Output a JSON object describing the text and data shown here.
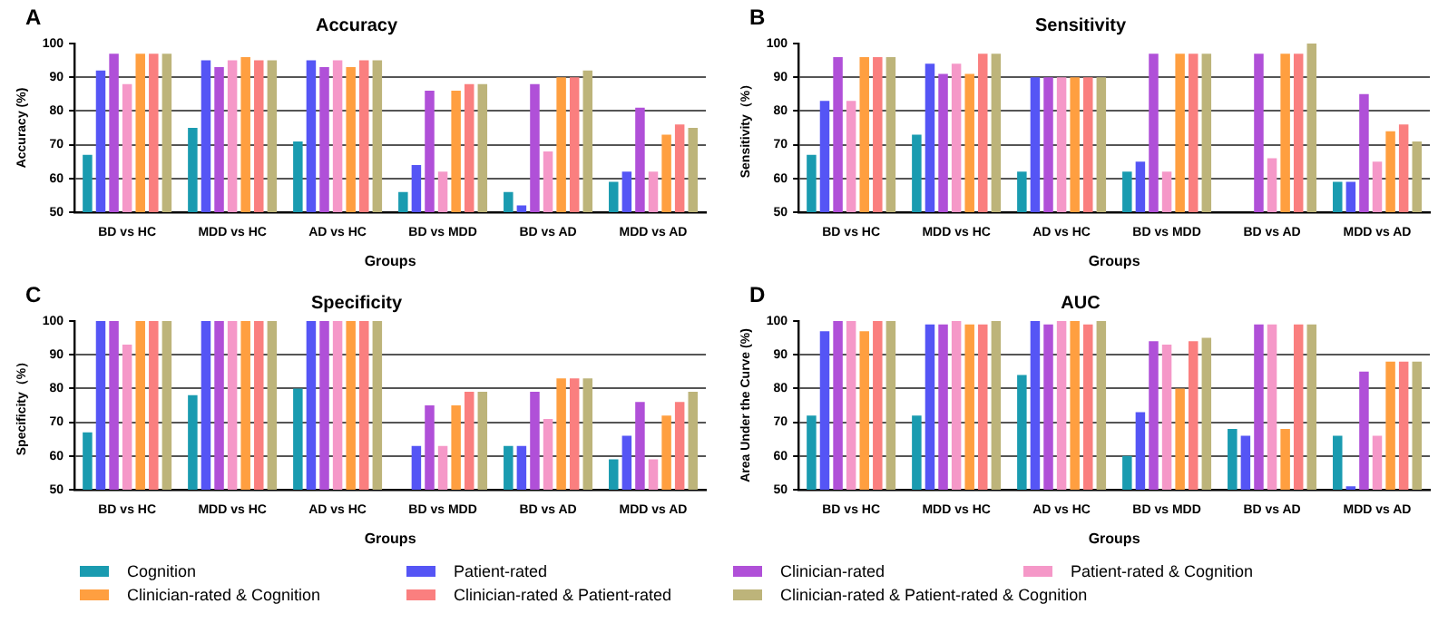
{
  "chart_data": [
    {
      "type": "bar",
      "title": "Accuracy",
      "annotations": [
        "A"
      ],
      "xlabel": "Groups",
      "ylabel": "Accuracy (%)",
      "categories": [
        "BD vs HC",
        "MDD vs HC",
        "AD vs HC",
        "BD vs MDD",
        "BD vs AD",
        "MDD vs AD"
      ],
      "ylim": [
        50,
        100
      ],
      "yticks": [
        50,
        60,
        70,
        80,
        90,
        100
      ],
      "grid": "y",
      "legend": "bottom",
      "series": [
        {
          "name": "Cognition",
          "color": "#1a9bb0",
          "values": [
            67,
            75,
            71,
            56,
            56,
            59
          ]
        },
        {
          "name": "Patient-rated",
          "color": "#5555f5",
          "values": [
            92,
            95,
            95,
            64,
            52,
            62
          ]
        },
        {
          "name": "Clinician-rated",
          "color": "#b050d8",
          "values": [
            97,
            93,
            93,
            86,
            88,
            81
          ]
        },
        {
          "name": "Patient-rated & Cognition",
          "color": "#f598c8",
          "values": [
            88,
            95,
            95,
            62,
            68,
            62
          ]
        },
        {
          "name": "Clinician-rated & Cognition",
          "color": "#ff9f40",
          "values": [
            97,
            96,
            93,
            86,
            90,
            73
          ]
        },
        {
          "name": "Clinician-rated & Patient-rated",
          "color": "#fa7f7f",
          "values": [
            97,
            95,
            95,
            88,
            90,
            76
          ]
        },
        {
          "name": "Clinician-rated & Patient-rated & Cognition",
          "color": "#bdb47a",
          "values": [
            97,
            95,
            95,
            88,
            92,
            75
          ]
        }
      ]
    },
    {
      "type": "bar",
      "title": "Sensitivity",
      "annotations": [
        "B"
      ],
      "xlabel": "Groups",
      "ylabel": "Sensitivity（%）",
      "categories": [
        "BD vs HC",
        "MDD vs HC",
        "AD vs HC",
        "BD vs MDD",
        "BD vs AD",
        "MDD vs AD"
      ],
      "ylim": [
        50,
        100
      ],
      "yticks": [
        50,
        60,
        70,
        80,
        90,
        100
      ],
      "grid": "y",
      "series": [
        {
          "color": "#1a9bb0",
          "values": [
            67,
            73,
            62,
            62,
            null,
            59
          ]
        },
        {
          "color": "#5555f5",
          "values": [
            83,
            94,
            90,
            65,
            null,
            59
          ]
        },
        {
          "color": "#b050d8",
          "values": [
            96,
            91,
            90,
            97,
            97,
            85
          ]
        },
        {
          "color": "#f598c8",
          "values": [
            83,
            94,
            90,
            62,
            66,
            65
          ]
        },
        {
          "color": "#ff9f40",
          "values": [
            96,
            91,
            90,
            97,
            97,
            74
          ]
        },
        {
          "color": "#fa7f7f",
          "values": [
            96,
            97,
            90,
            97,
            97,
            76
          ]
        },
        {
          "color": "#bdb47a",
          "values": [
            96,
            97,
            90,
            97,
            100,
            71
          ]
        }
      ]
    },
    {
      "type": "bar",
      "title": "Specificity",
      "annotations": [
        "C"
      ],
      "xlabel": "Groups",
      "ylabel": "Specificity（%）",
      "categories": [
        "BD vs HC",
        "MDD vs HC",
        "AD vs HC",
        "BD vs MDD",
        "BD vs AD",
        "MDD vs AD"
      ],
      "ylim": [
        50,
        100
      ],
      "yticks": [
        50,
        60,
        70,
        80,
        90,
        100
      ],
      "grid": "y",
      "series": [
        {
          "color": "#1a9bb0",
          "values": [
            67,
            78,
            80,
            null,
            63,
            59
          ]
        },
        {
          "color": "#5555f5",
          "values": [
            100,
            100,
            100,
            63,
            63,
            66
          ]
        },
        {
          "color": "#b050d8",
          "values": [
            100,
            100,
            100,
            75,
            79,
            76
          ]
        },
        {
          "color": "#f598c8",
          "values": [
            93,
            100,
            100,
            63,
            71,
            59
          ]
        },
        {
          "color": "#ff9f40",
          "values": [
            100,
            100,
            100,
            75,
            83,
            72
          ]
        },
        {
          "color": "#fa7f7f",
          "values": [
            100,
            100,
            100,
            79,
            83,
            76
          ]
        },
        {
          "color": "#bdb47a",
          "values": [
            100,
            100,
            100,
            79,
            83,
            79
          ]
        }
      ]
    },
    {
      "type": "bar",
      "title": "AUC",
      "annotations": [
        "D"
      ],
      "xlabel": "Groups",
      "ylabel": "Area Under the Curve (%)",
      "categories": [
        "BD vs HC",
        "MDD vs HC",
        "AD vs HC",
        "BD vs MDD",
        "BD vs AD",
        "MDD vs AD"
      ],
      "ylim": [
        50,
        100
      ],
      "yticks": [
        50,
        60,
        70,
        80,
        90,
        100
      ],
      "grid": "y",
      "series": [
        {
          "color": "#1a9bb0",
          "values": [
            72,
            72,
            84,
            60,
            68,
            66
          ]
        },
        {
          "color": "#5555f5",
          "values": [
            97,
            99,
            100,
            73,
            66,
            51
          ]
        },
        {
          "color": "#b050d8",
          "values": [
            100,
            99,
            99,
            94,
            99,
            85
          ]
        },
        {
          "color": "#f598c8",
          "values": [
            100,
            100,
            100,
            93,
            99,
            66
          ]
        },
        {
          "color": "#ff9f40",
          "values": [
            97,
            99,
            100,
            80,
            68,
            88
          ]
        },
        {
          "color": "#fa7f7f",
          "values": [
            100,
            99,
            99,
            94,
            99,
            88
          ]
        },
        {
          "color": "#bdb47a",
          "values": [
            100,
            100,
            100,
            95,
            99,
            88
          ]
        }
      ]
    }
  ]
}
